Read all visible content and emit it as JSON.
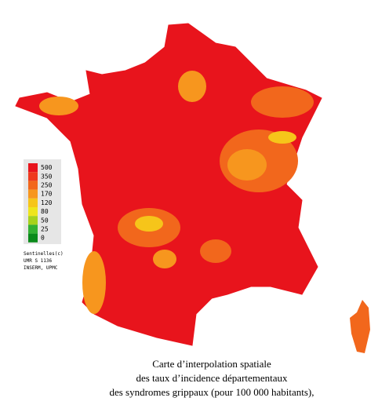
{
  "legend": {
    "items": [
      {
        "label": 500,
        "color": "#e8141c"
      },
      {
        "label": 350,
        "color": "#ef3a1e"
      },
      {
        "label": 250,
        "color": "#f2671c"
      },
      {
        "label": 170,
        "color": "#f7961e"
      },
      {
        "label": 120,
        "color": "#f6c51a"
      },
      {
        "label": 80,
        "color": "#eee51c"
      },
      {
        "label": 50,
        "color": "#a6d21c"
      },
      {
        "label": 25,
        "color": "#32b032"
      },
      {
        "label": 0,
        "color": "#0a8a1a"
      }
    ],
    "source": [
      "Sentinelles(c)",
      "UMR S 1136",
      "INSERM, UPMC"
    ]
  },
  "caption": [
    "Carte d’interpolation spatiale",
    "des taux d’incidence départementaux",
    "des syndromes grippaux (pour 100 000 habitants),"
  ]
}
